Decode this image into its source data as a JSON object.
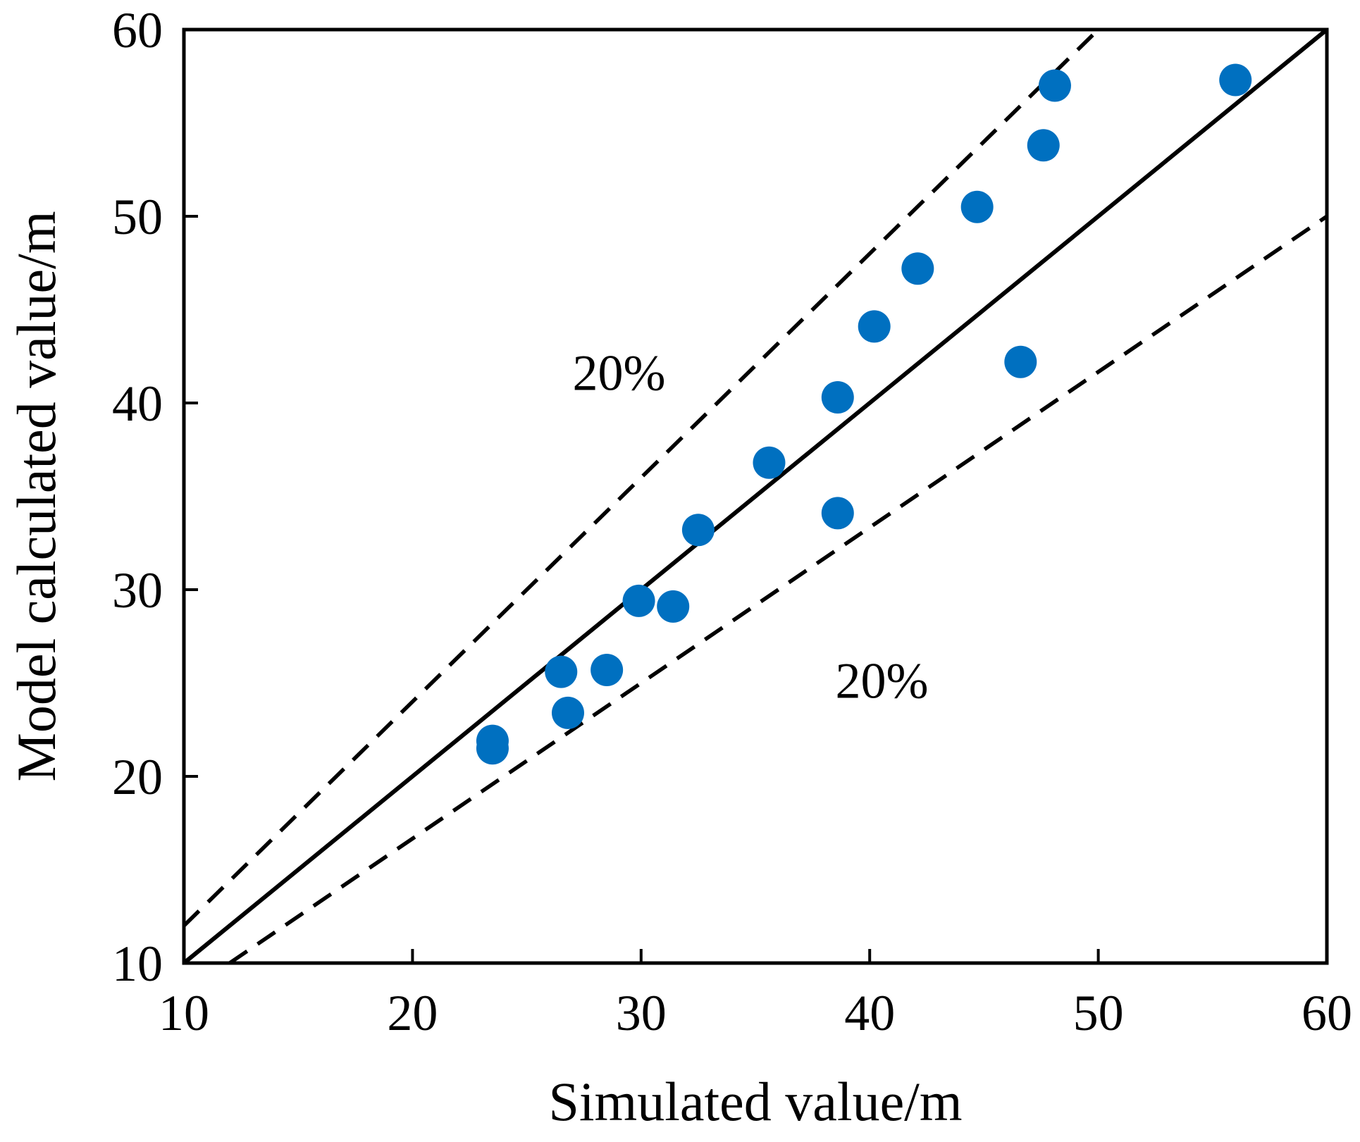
{
  "chart_data": {
    "type": "scatter",
    "title": "",
    "xlabel": "Simulated value/m",
    "ylabel": "Model calculated value/m",
    "xlim": [
      10,
      60
    ],
    "ylim": [
      10,
      60
    ],
    "xticks": [
      10,
      20,
      30,
      40,
      50,
      60
    ],
    "yticks": [
      10,
      20,
      30,
      40,
      50,
      60
    ],
    "xtick_labels": [
      "10",
      "20",
      "30",
      "40",
      "50",
      "60"
    ],
    "ytick_labels": [
      "10",
      "20",
      "30",
      "40",
      "50",
      "60"
    ],
    "grid": false,
    "legend": "none",
    "marker_color": "#0070C0",
    "points": [
      {
        "x": 23.5,
        "y": 21.9
      },
      {
        "x": 23.5,
        "y": 21.5
      },
      {
        "x": 26.5,
        "y": 25.6
      },
      {
        "x": 26.8,
        "y": 23.4
      },
      {
        "x": 28.5,
        "y": 25.7
      },
      {
        "x": 29.9,
        "y": 29.4
      },
      {
        "x": 31.4,
        "y": 29.1
      },
      {
        "x": 32.5,
        "y": 33.2
      },
      {
        "x": 35.6,
        "y": 36.8
      },
      {
        "x": 38.6,
        "y": 40.3
      },
      {
        "x": 38.6,
        "y": 34.1
      },
      {
        "x": 40.2,
        "y": 44.1
      },
      {
        "x": 42.1,
        "y": 47.2
      },
      {
        "x": 44.7,
        "y": 50.5
      },
      {
        "x": 46.6,
        "y": 42.2
      },
      {
        "x": 47.6,
        "y": 53.8
      },
      {
        "x": 48.1,
        "y": 57.0
      },
      {
        "x": 56.0,
        "y": 57.3
      }
    ],
    "reference_lines": [
      {
        "name": "y = x",
        "style": "solid",
        "slope": 1.0,
        "x_range": [
          10,
          60
        ]
      },
      {
        "name": "+20%",
        "style": "dashed",
        "slope": 1.2,
        "x_range": [
          10,
          50
        ]
      },
      {
        "name": "-20%",
        "style": "dashed",
        "slope": 0.8333,
        "x_range": [
          12,
          60
        ]
      }
    ],
    "annotations": [
      {
        "text": "20%",
        "x": 27.0,
        "y": 40.7
      },
      {
        "text": "20%",
        "x": 38.5,
        "y": 24.2
      }
    ]
  }
}
